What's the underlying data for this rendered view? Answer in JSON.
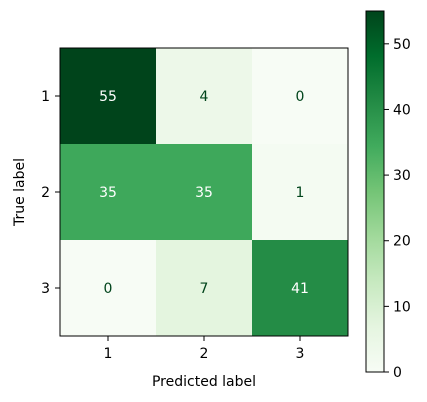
{
  "chart_data": {
    "type": "heatmap",
    "title": "",
    "xlabel": "Predicted label",
    "ylabel": "True label",
    "x_categories": [
      "1",
      "2",
      "3"
    ],
    "y_categories": [
      "1",
      "2",
      "3"
    ],
    "values": [
      [
        55,
        4,
        0
      ],
      [
        35,
        35,
        1
      ],
      [
        0,
        7,
        41
      ]
    ],
    "colormap": "Greens",
    "colorbar": {
      "range": [
        0,
        55
      ],
      "ticks": [
        0,
        10,
        20,
        30,
        40,
        50
      ]
    },
    "text_colors": {
      "dark": "#00441b",
      "light": "#ffffff"
    },
    "grid": false
  }
}
